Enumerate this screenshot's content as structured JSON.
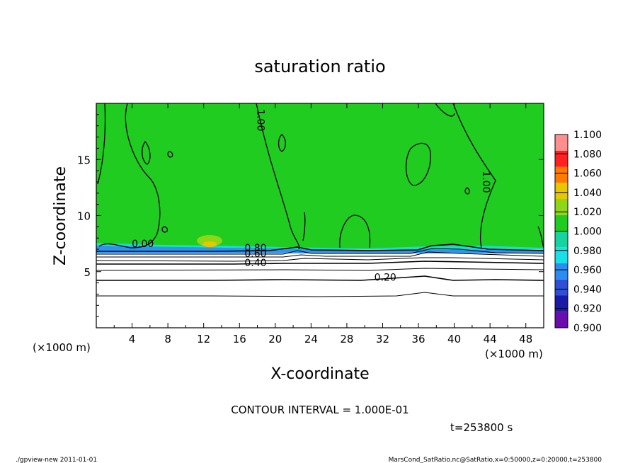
{
  "chart_data": {
    "type": "heatmap",
    "title": "saturation ratio",
    "xlabel": "X-coordinate",
    "ylabel": "Z-coordinate",
    "x_unit_label": "(×1000 m)",
    "y_unit_label": "(×1000 m)",
    "xlim": [
      0,
      50
    ],
    "ylim": [
      0,
      20
    ],
    "x_ticks": [
      4,
      8,
      12,
      16,
      20,
      24,
      28,
      32,
      36,
      40,
      44,
      48
    ],
    "y_ticks": [
      5,
      10,
      15
    ],
    "colorbar": {
      "levels": [
        0.9,
        0.92,
        0.94,
        0.96,
        0.98,
        1.0,
        1.02,
        1.04,
        1.06,
        1.08,
        1.1
      ],
      "labels": [
        "0.900",
        "0.920",
        "0.940",
        "0.960",
        "0.980",
        "1.000",
        "1.020",
        "1.040",
        "1.060",
        "1.080",
        "1.100"
      ],
      "colors": [
        "#6a0dad",
        "#1a1aa8",
        "#2e4fd6",
        "#2d8cf0",
        "#19e0e6",
        "#16d3a0",
        "#20cc20",
        "#8fd615",
        "#e5c800",
        "#ff7a00",
        "#ff2020",
        "#ff8f8f"
      ]
    },
    "background_color": "#20cc20",
    "contour_labels": [
      {
        "text": "1.00",
        "x": 18.0,
        "z": 18.5
      },
      {
        "text": "1.00",
        "x": 43.2,
        "z": 13.0
      },
      {
        "text": "0.00",
        "x": 5.2,
        "z": 7.2
      },
      {
        "text": "0.80",
        "x": 17.8,
        "z": 6.8
      },
      {
        "text": "0.60",
        "x": 17.8,
        "z": 6.3
      },
      {
        "text": "0.40",
        "x": 17.8,
        "z": 5.5
      },
      {
        "text": "0.20",
        "x": 32.3,
        "z": 4.2
      }
    ],
    "contour_interval_label": "CONTOUR INTERVAL = 1.000E-01",
    "time_label": "t=253800 s"
  },
  "footer": {
    "left": "./gpview-new   2011-01-01",
    "right": "MarsCond_SatRatio.nc@SatRatio,x=0:50000,z=0:20000,t=253800"
  }
}
